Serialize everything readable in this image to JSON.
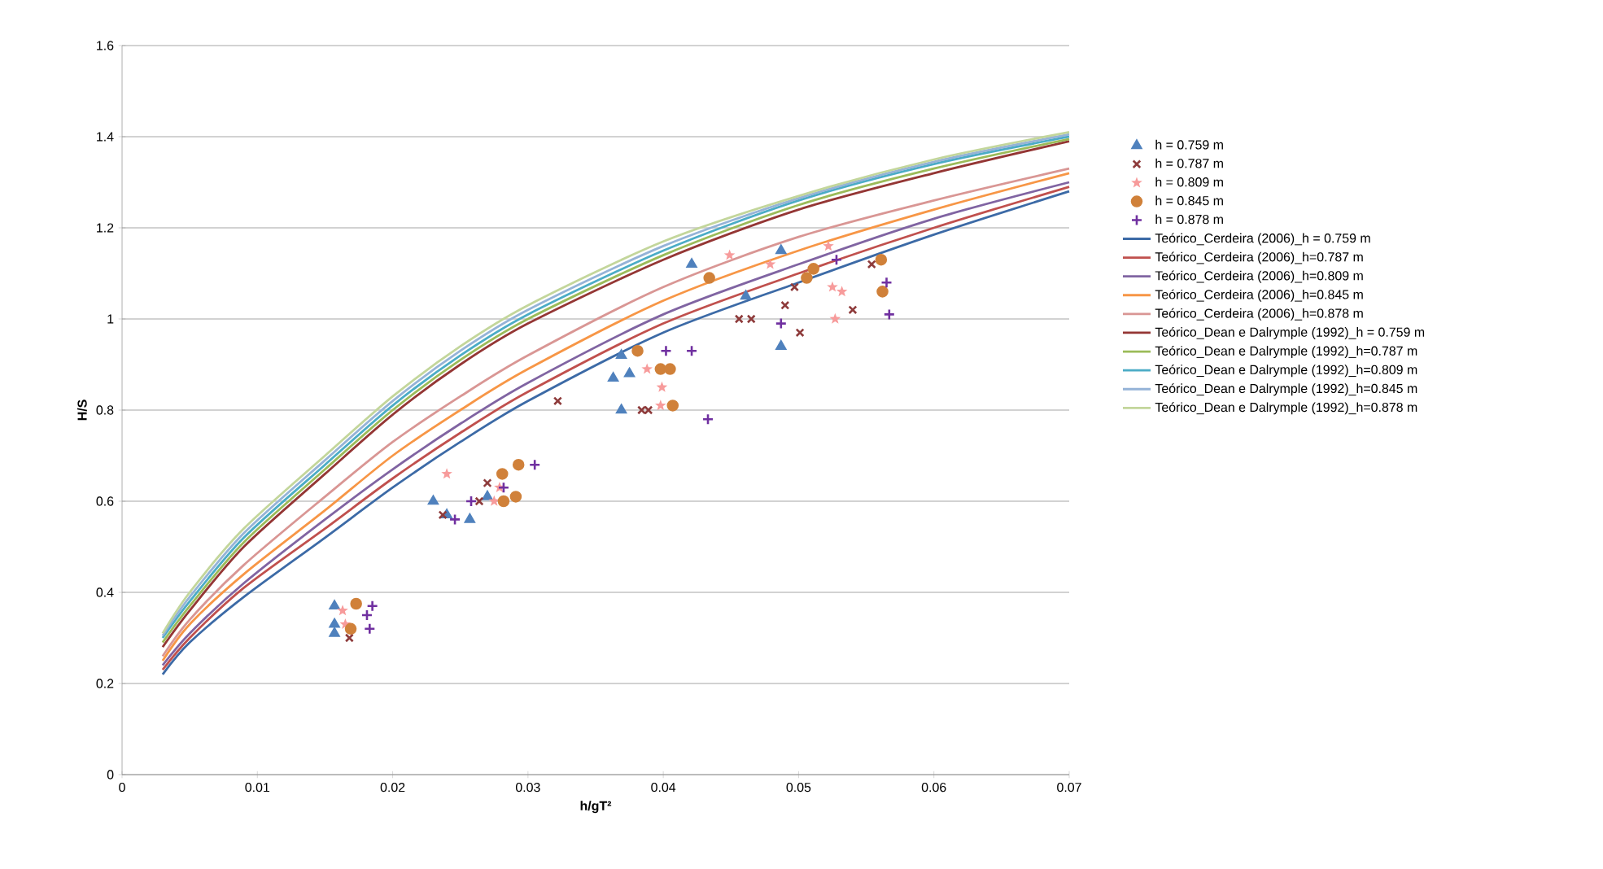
{
  "chart_data": {
    "type": "scatter",
    "xlabel": "h/gT²",
    "ylabel": "H/S",
    "xlim": [
      0,
      0.07
    ],
    "ylim": [
      0,
      1.6
    ],
    "xticks": [
      0,
      0.01,
      0.02,
      0.03,
      0.04,
      0.05,
      0.06,
      0.07
    ],
    "yticks": [
      0,
      0.2,
      0.4,
      0.6,
      0.8,
      1,
      1.2,
      1.4,
      1.6
    ],
    "grid": "y",
    "legend": "right",
    "series": [
      {
        "name": "h = 0.759 m",
        "marker": "triangle",
        "color": "#4f81bd",
        "x": [
          0.0157,
          0.0157,
          0.0157,
          0.023,
          0.024,
          0.0257,
          0.027,
          0.0363,
          0.0369,
          0.0369,
          0.0375,
          0.0421,
          0.0461,
          0.0487,
          0.0487
        ],
        "values": [
          0.37,
          0.33,
          0.31,
          0.6,
          0.57,
          0.56,
          0.61,
          0.87,
          0.92,
          0.8,
          0.88,
          1.12,
          1.05,
          0.94,
          1.15
        ]
      },
      {
        "name": "h = 0.787 m",
        "marker": "cross",
        "color": "#8e3b3b",
        "x": [
          0.0168,
          0.0237,
          0.0264,
          0.027,
          0.0322,
          0.0384,
          0.0389,
          0.0456,
          0.0465,
          0.049,
          0.0497,
          0.0501,
          0.054,
          0.0554
        ],
        "values": [
          0.3,
          0.57,
          0.6,
          0.64,
          0.82,
          0.8,
          0.8,
          1.0,
          1.0,
          1.03,
          1.07,
          0.97,
          1.02,
          1.12
        ]
      },
      {
        "name": "h = 0.809 m",
        "marker": "star",
        "color": "#f79b9b",
        "x": [
          0.0163,
          0.0165,
          0.024,
          0.0275,
          0.0279,
          0.0388,
          0.0399,
          0.0398,
          0.0449,
          0.0479,
          0.0525,
          0.0527,
          0.0532,
          0.0522
        ],
        "values": [
          0.36,
          0.33,
          0.66,
          0.6,
          0.63,
          0.89,
          0.85,
          0.81,
          1.14,
          1.12,
          1.07,
          1.0,
          1.06,
          1.16
        ]
      },
      {
        "name": "h = 0.845 m",
        "marker": "circle",
        "color": "#d0813a",
        "x": [
          0.0173,
          0.0169,
          0.0281,
          0.0291,
          0.0293,
          0.0282,
          0.0381,
          0.0398,
          0.0405,
          0.0407,
          0.0434,
          0.0506,
          0.0511,
          0.0561,
          0.0562
        ],
        "values": [
          0.375,
          0.32,
          0.66,
          0.61,
          0.68,
          0.6,
          0.93,
          0.89,
          0.89,
          0.81,
          1.09,
          1.09,
          1.11,
          1.13,
          1.06
        ]
      },
      {
        "name": "h = 0.878 m",
        "marker": "plus",
        "color": "#7030a0",
        "x": [
          0.0181,
          0.0183,
          0.0185,
          0.0246,
          0.0258,
          0.0282,
          0.0305,
          0.0402,
          0.0421,
          0.0433,
          0.0487,
          0.0528,
          0.0565,
          0.0567
        ],
        "values": [
          0.35,
          0.32,
          0.37,
          0.56,
          0.6,
          0.63,
          0.68,
          0.93,
          0.93,
          0.78,
          0.99,
          1.13,
          1.08,
          1.01
        ]
      },
      {
        "name": "Teórico_Cerdeira (2006)_h = 0.759 m",
        "type": "line",
        "line_style": "solid",
        "color": "#3c6aa6",
        "x": [
          0.003,
          0.005,
          0.009,
          0.015,
          0.02,
          0.025,
          0.03,
          0.04,
          0.05,
          0.06,
          0.07
        ],
        "values": [
          0.22,
          0.29,
          0.39,
          0.52,
          0.63,
          0.73,
          0.82,
          0.97,
          1.08,
          1.185,
          1.28
        ]
      },
      {
        "name": "Teórico_Cerdeira (2006)_h=0.787 m",
        "type": "line",
        "line_style": "solid",
        "color": "#c0504d",
        "x": [
          0.003,
          0.005,
          0.009,
          0.015,
          0.02,
          0.025,
          0.03,
          0.04,
          0.05,
          0.06,
          0.07
        ],
        "values": [
          0.23,
          0.3,
          0.41,
          0.54,
          0.65,
          0.75,
          0.84,
          0.99,
          1.1,
          1.2,
          1.29
        ]
      },
      {
        "name": "Teórico_Cerdeira (2006)_h=0.809 m",
        "type": "line",
        "line_style": "solid",
        "color": "#8064a2",
        "x": [
          0.003,
          0.005,
          0.009,
          0.015,
          0.02,
          0.025,
          0.03,
          0.04,
          0.05,
          0.06,
          0.07
        ],
        "values": [
          0.24,
          0.31,
          0.42,
          0.56,
          0.67,
          0.77,
          0.86,
          1.01,
          1.12,
          1.22,
          1.3
        ]
      },
      {
        "name": "Teórico_Cerdeira (2006)_h=0.845 m",
        "type": "line",
        "line_style": "solid",
        "color": "#f79646",
        "x": [
          0.003,
          0.005,
          0.009,
          0.015,
          0.02,
          0.025,
          0.03,
          0.04,
          0.05,
          0.06,
          0.07
        ],
        "values": [
          0.25,
          0.33,
          0.44,
          0.58,
          0.7,
          0.8,
          0.89,
          1.04,
          1.15,
          1.24,
          1.32
        ]
      },
      {
        "name": "Teórico_Cerdeira (2006)_h=0.878 m",
        "type": "line",
        "line_style": "solid",
        "color": "#d99694",
        "x": [
          0.003,
          0.005,
          0.009,
          0.015,
          0.02,
          0.025,
          0.03,
          0.04,
          0.05,
          0.06,
          0.07
        ],
        "values": [
          0.26,
          0.34,
          0.46,
          0.61,
          0.73,
          0.83,
          0.92,
          1.07,
          1.18,
          1.26,
          1.33
        ]
      },
      {
        "name": "Teórico_Dean e Dalrymple (1992)_h = 0.759 m",
        "type": "line",
        "line_style": "solid",
        "color": "#943634",
        "x": [
          0.003,
          0.005,
          0.009,
          0.015,
          0.02,
          0.025,
          0.03,
          0.04,
          0.05,
          0.06,
          0.07
        ],
        "values": [
          0.28,
          0.36,
          0.5,
          0.66,
          0.79,
          0.9,
          0.99,
          1.13,
          1.24,
          1.32,
          1.39
        ]
      },
      {
        "name": "Teórico_Dean e Dalrymple (1992)_h=0.787 m",
        "type": "line",
        "line_style": "solid",
        "color": "#9bbb59",
        "x": [
          0.003,
          0.005,
          0.009,
          0.015,
          0.02,
          0.025,
          0.03,
          0.04,
          0.05,
          0.06,
          0.07
        ],
        "values": [
          0.29,
          0.37,
          0.51,
          0.67,
          0.8,
          0.91,
          1.0,
          1.14,
          1.25,
          1.33,
          1.395
        ]
      },
      {
        "name": "Teórico_Dean e Dalrymple (1992)_h=0.809 m",
        "type": "line",
        "line_style": "solid",
        "color": "#4bacc6",
        "x": [
          0.003,
          0.005,
          0.009,
          0.015,
          0.02,
          0.025,
          0.03,
          0.04,
          0.05,
          0.06,
          0.07
        ],
        "values": [
          0.3,
          0.38,
          0.52,
          0.68,
          0.81,
          0.92,
          1.01,
          1.15,
          1.26,
          1.34,
          1.4
        ]
      },
      {
        "name": "Teórico_Dean e Dalrymple (1992)_h=0.845 m",
        "type": "line",
        "line_style": "solid",
        "color": "#95b3d7",
        "x": [
          0.003,
          0.005,
          0.009,
          0.015,
          0.02,
          0.025,
          0.03,
          0.04,
          0.05,
          0.06,
          0.07
        ],
        "values": [
          0.305,
          0.39,
          0.53,
          0.69,
          0.82,
          0.93,
          1.02,
          1.16,
          1.265,
          1.345,
          1.405
        ]
      },
      {
        "name": "Teórico_Dean e Dalrymple (1992)_h=0.878 m",
        "type": "line",
        "line_style": "solid",
        "color": "#c3d69b",
        "x": [
          0.003,
          0.005,
          0.009,
          0.015,
          0.02,
          0.025,
          0.03,
          0.04,
          0.05,
          0.06,
          0.07
        ],
        "values": [
          0.31,
          0.4,
          0.54,
          0.7,
          0.83,
          0.94,
          1.03,
          1.17,
          1.27,
          1.35,
          1.41
        ]
      }
    ]
  }
}
